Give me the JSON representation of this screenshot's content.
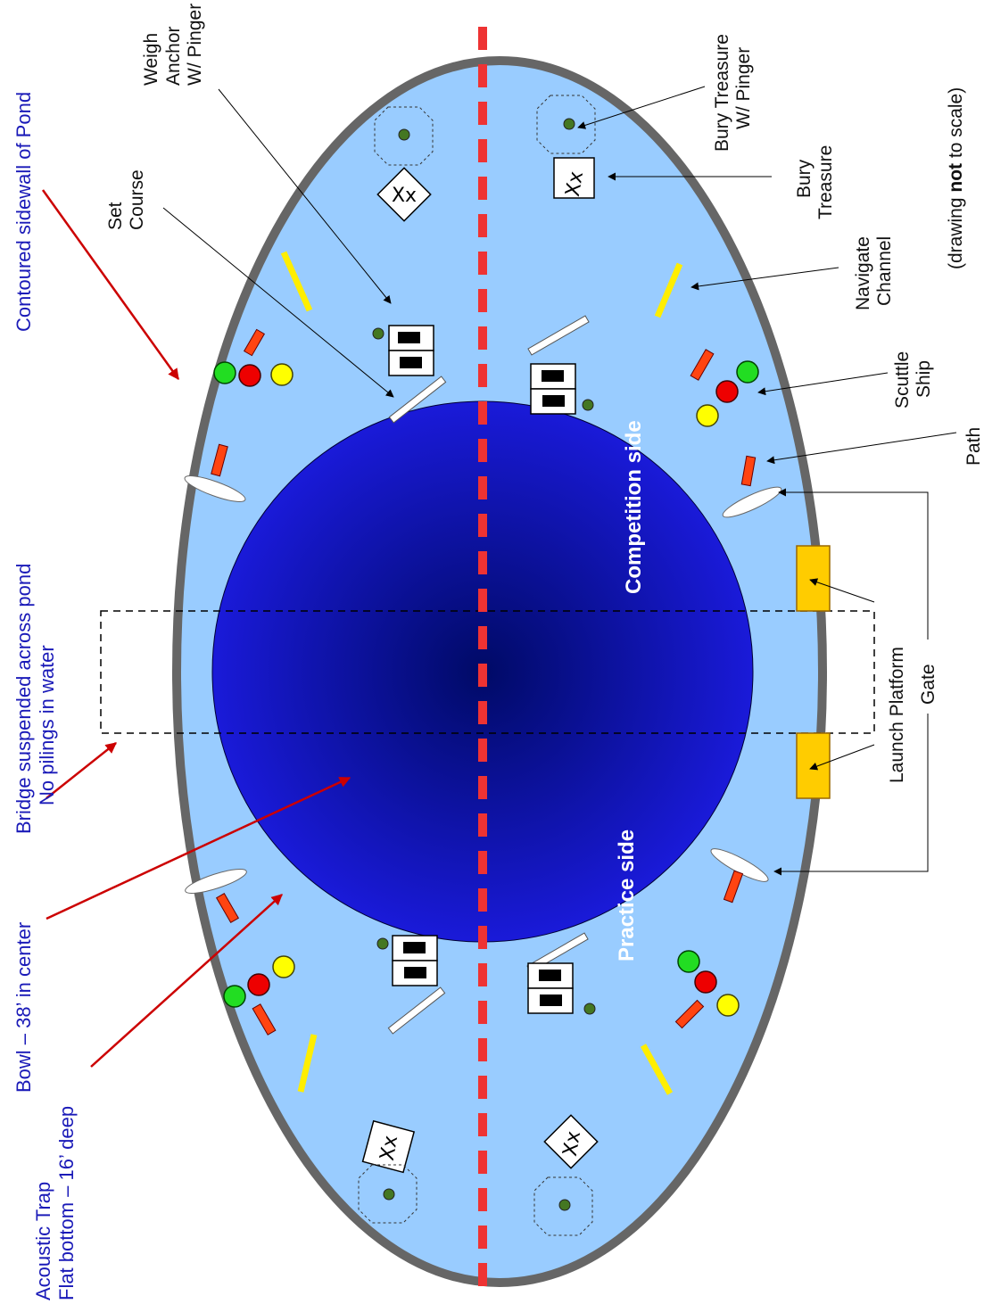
{
  "labels": {
    "sidewall": "Contoured sidewall of Pond",
    "bridge_line1": "Bridge suspended across pond",
    "bridge_line2": "No pilings in water",
    "bowl": "Bowl – 38’ in center",
    "trap_line1": "Acoustic Trap",
    "trap_line2": "Flat bottom – 16’ deep",
    "set_course_line1": "Set",
    "set_course_line2": "Course",
    "weigh_anchor_line1": "Weigh",
    "weigh_anchor_line2": "Anchor",
    "weigh_anchor_line3": "W/ Pinger",
    "bury_pinger_line1": "Bury Treasure",
    "bury_pinger_line2": "W/ Pinger",
    "bury_line1": "Bury",
    "bury_line2": "Treasure",
    "navigate_line1": "Navigate",
    "navigate_line2": "Channel",
    "scuttle_line1": "Scuttle",
    "scuttle_line2": "Ship",
    "path": "Path",
    "launch_platform": "Launch Platform",
    "gate": "Gate",
    "scale_pre": "(drawing ",
    "scale_bold": "not",
    "scale_post": " to scale)",
    "competition": "Competition side",
    "practice": "Practice side",
    "treasure_mark": "Xx"
  },
  "colors": {
    "pond": "#99ccff",
    "sidewall": "#666666",
    "bowl_center": "#000a66",
    "bowl_edge": "#1a1ad9",
    "centerline": "#ee3333",
    "blue_label": "#1a1ab8",
    "red_arrow": "#cc0000",
    "platform": "#ffcc00",
    "channel": "#ffee00",
    "path_marker": "#ff4411",
    "buoy_green": "#22dd22",
    "buoy_red": "#ee0000",
    "buoy_yellow": "#ffff00",
    "pinger": "#447722"
  }
}
